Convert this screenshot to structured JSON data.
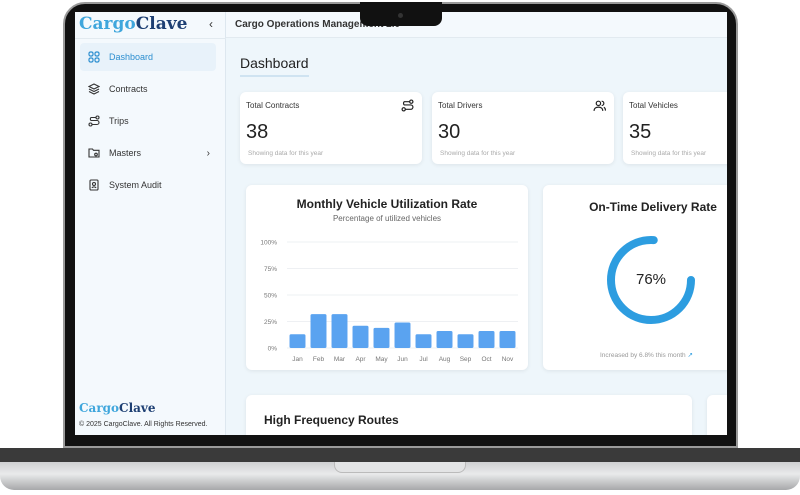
{
  "app": {
    "brand_part1": "Cargo",
    "brand_part2": "Clave",
    "header_title": "Cargo Operations Management 2.0",
    "collapse_icon": "chevron-left-icon"
  },
  "sidebar": {
    "items": [
      {
        "label": "Dashboard",
        "icon": "grid-icon",
        "active": true
      },
      {
        "label": "Contracts",
        "icon": "layers-icon"
      },
      {
        "label": "Trips",
        "icon": "route-icon"
      },
      {
        "label": "Masters",
        "icon": "folder-settings-icon",
        "has_submenu": true
      },
      {
        "label": "System Audit",
        "icon": "audit-icon"
      }
    ],
    "footer_brand_part1": "Cargo",
    "footer_brand_part2": "Clave",
    "copyright": "© 2025 CargoClave. All Rights Reserved."
  },
  "main": {
    "page_title": "Dashboard",
    "stats": [
      {
        "label": "Total Contracts",
        "value": "38",
        "sub": "Showing data for this year",
        "icon": "route-icon"
      },
      {
        "label": "Total Drivers",
        "value": "30",
        "sub": "Showing data for this year",
        "icon": "users-icon"
      },
      {
        "label": "Total Vehicles",
        "value": "35",
        "sub": "Showing data for this year",
        "icon": "truck-icon"
      }
    ],
    "delivery": {
      "title": "On-Time Delivery Rate",
      "value": 76,
      "value_label": "76%",
      "note": "Increased by 6.8% this month",
      "note_icon": "trending-up-icon",
      "color": "#2d9de0"
    },
    "routes": {
      "title": "High Frequency Routes"
    }
  },
  "chart_data": {
    "type": "bar",
    "title": "Monthly Vehicle Utilization Rate",
    "subtitle": "Percentage of utilized vehicles",
    "categories": [
      "Jan",
      "Feb",
      "Mar",
      "Apr",
      "May",
      "Jun",
      "Jul",
      "Aug",
      "Sep",
      "Oct",
      "Nov"
    ],
    "values": [
      13,
      32,
      32,
      21,
      19,
      24,
      13,
      16,
      13,
      16,
      16
    ],
    "ylim": [
      0,
      100
    ],
    "yticks": [
      "0%",
      "25%",
      "50%",
      "75%",
      "100%"
    ],
    "grid": true,
    "color": "#5aa3f0"
  }
}
